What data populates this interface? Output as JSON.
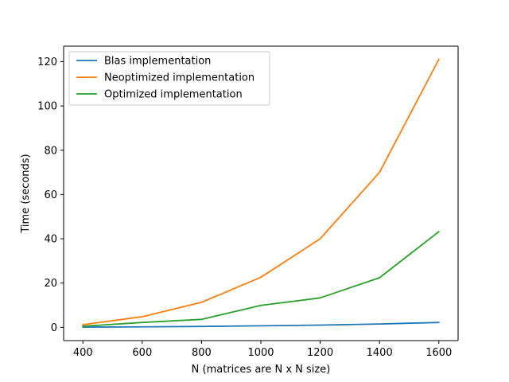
{
  "chart_data": {
    "type": "line",
    "title": "",
    "xlabel": "N (matrices are N x N size)",
    "ylabel": "Time (seconds)",
    "x": [
      400,
      600,
      800,
      1000,
      1200,
      1400,
      1600
    ],
    "xlim": [
      335,
      1665
    ],
    "ylim": [
      -6,
      127
    ],
    "xticks": [
      400,
      600,
      800,
      1000,
      1200,
      1400,
      1600
    ],
    "yticks": [
      0,
      20,
      40,
      60,
      80,
      100,
      120
    ],
    "grid": false,
    "legend_position": "top-left",
    "series": [
      {
        "name": "Blas implementation",
        "color": "#1f77b4",
        "values": [
          0.1,
          0.2,
          0.4,
          0.7,
          1.0,
          1.5,
          2.2
        ]
      },
      {
        "name": "Neoptimized implementation",
        "color": "#ff7f0e",
        "values": [
          1.2,
          4.8,
          11.3,
          22.6,
          40.0,
          70.0,
          121.0
        ]
      },
      {
        "name": "Optimized implementation",
        "color": "#2ca02c",
        "values": [
          0.5,
          2.2,
          3.6,
          9.9,
          13.3,
          22.4,
          43.2
        ]
      }
    ]
  }
}
